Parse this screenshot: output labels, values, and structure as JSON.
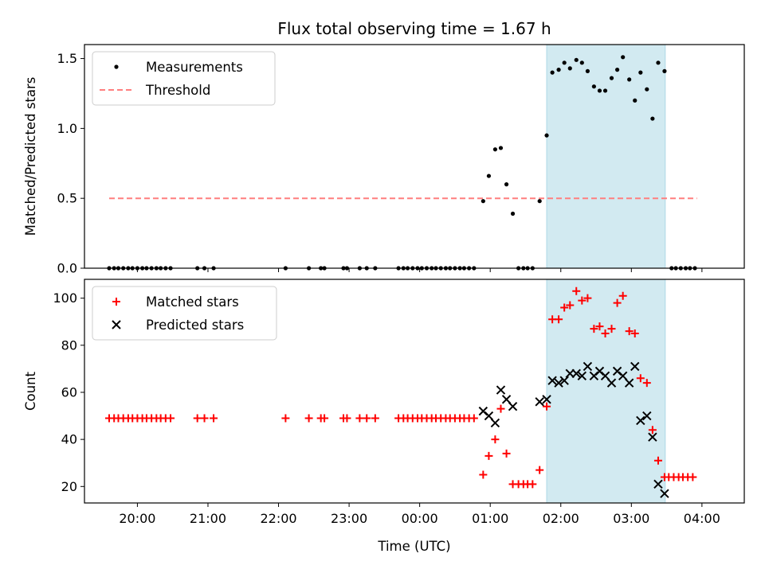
{
  "title": "Flux total observing time = 1.67 h",
  "colors": {
    "measurement": "#000000",
    "threshold": "#ff7f7f",
    "matched": "#ff0000",
    "predicted": "#000000",
    "span_fill": "#add8e6"
  },
  "chart_data": [
    {
      "type": "scatter",
      "ylabel": "Matched/Predicted stars",
      "ylim": [
        0,
        1.6
      ],
      "yticks": [
        0.0,
        0.5,
        1.0,
        1.5
      ],
      "ytick_labels": [
        "0.0",
        "0.5",
        "1.0",
        "1.5"
      ],
      "x_range_hours": [
        19.25,
        28.6
      ],
      "xticks_hours": [
        20,
        21,
        22,
        23,
        24,
        25,
        26,
        27,
        28
      ],
      "shaded_span_hours": [
        25.8,
        27.48
      ],
      "threshold": {
        "value": 0.5,
        "x_range_hours": [
          19.6,
          27.93
        ]
      },
      "legend": {
        "position": "top-left",
        "entries": [
          "Measurements",
          "Threshold"
        ]
      },
      "series": [
        {
          "name": "Measurements",
          "marker": "dot",
          "points": [
            [
              19.6,
              0
            ],
            [
              19.67,
              0
            ],
            [
              19.73,
              0
            ],
            [
              19.8,
              0
            ],
            [
              19.87,
              0
            ],
            [
              19.93,
              0
            ],
            [
              20.0,
              0
            ],
            [
              20.07,
              0
            ],
            [
              20.13,
              0
            ],
            [
              20.2,
              0
            ],
            [
              20.27,
              0
            ],
            [
              20.33,
              0
            ],
            [
              20.4,
              0
            ],
            [
              20.47,
              0
            ],
            [
              20.85,
              0
            ],
            [
              20.95,
              0
            ],
            [
              21.08,
              0
            ],
            [
              22.1,
              0
            ],
            [
              22.43,
              0
            ],
            [
              22.6,
              0
            ],
            [
              22.65,
              0
            ],
            [
              22.92,
              0
            ],
            [
              22.97,
              0
            ],
            [
              23.15,
              0
            ],
            [
              23.25,
              0
            ],
            [
              23.37,
              0
            ],
            [
              23.7,
              0
            ],
            [
              23.77,
              0
            ],
            [
              23.83,
              0
            ],
            [
              23.9,
              0
            ],
            [
              23.97,
              0
            ],
            [
              24.03,
              0
            ],
            [
              24.1,
              0
            ],
            [
              24.17,
              0
            ],
            [
              24.23,
              0
            ],
            [
              24.3,
              0
            ],
            [
              24.37,
              0
            ],
            [
              24.43,
              0
            ],
            [
              24.5,
              0
            ],
            [
              24.57,
              0
            ],
            [
              24.63,
              0
            ],
            [
              24.7,
              0
            ],
            [
              24.77,
              0
            ],
            [
              24.9,
              0.48
            ],
            [
              24.98,
              0.66
            ],
            [
              25.07,
              0.85
            ],
            [
              25.15,
              0.86
            ],
            [
              25.23,
              0.6
            ],
            [
              25.32,
              0.39
            ],
            [
              25.4,
              0
            ],
            [
              25.47,
              0
            ],
            [
              25.53,
              0
            ],
            [
              25.6,
              0
            ],
            [
              25.7,
              0.48
            ],
            [
              25.8,
              0.95
            ],
            [
              25.88,
              1.4
            ],
            [
              25.97,
              1.42
            ],
            [
              26.05,
              1.47
            ],
            [
              26.13,
              1.43
            ],
            [
              26.22,
              1.49
            ],
            [
              26.3,
              1.47
            ],
            [
              26.38,
              1.41
            ],
            [
              26.47,
              1.3
            ],
            [
              26.55,
              1.27
            ],
            [
              26.63,
              1.27
            ],
            [
              26.72,
              1.36
            ],
            [
              26.8,
              1.42
            ],
            [
              26.88,
              1.51
            ],
            [
              26.97,
              1.35
            ],
            [
              27.05,
              1.2
            ],
            [
              27.13,
              1.4
            ],
            [
              27.22,
              1.28
            ],
            [
              27.3,
              1.07
            ],
            [
              27.38,
              1.47
            ],
            [
              27.47,
              1.41
            ],
            [
              27.57,
              0
            ],
            [
              27.63,
              0
            ],
            [
              27.7,
              0
            ],
            [
              27.77,
              0
            ],
            [
              27.83,
              0
            ],
            [
              27.9,
              0
            ]
          ]
        }
      ]
    },
    {
      "type": "scatter",
      "ylabel": "Count",
      "xlabel": "Time (UTC)",
      "ylim": [
        13,
        108
      ],
      "yticks": [
        20,
        40,
        60,
        80,
        100
      ],
      "ytick_labels": [
        "20",
        "40",
        "60",
        "80",
        "100"
      ],
      "x_range_hours": [
        19.25,
        28.6
      ],
      "xticks_hours": [
        20,
        21,
        22,
        23,
        24,
        25,
        26,
        27,
        28
      ],
      "xtick_labels": [
        "20:00",
        "21:00",
        "22:00",
        "23:00",
        "00:00",
        "01:00",
        "02:00",
        "03:00",
        "04:00"
      ],
      "shaded_span_hours": [
        25.8,
        27.48
      ],
      "legend": {
        "position": "top-left",
        "entries": [
          "Matched stars",
          "Predicted stars"
        ]
      },
      "series": [
        {
          "name": "Matched stars",
          "marker": "plus",
          "points": [
            [
              19.6,
              49
            ],
            [
              19.67,
              49
            ],
            [
              19.73,
              49
            ],
            [
              19.8,
              49
            ],
            [
              19.87,
              49
            ],
            [
              19.93,
              49
            ],
            [
              20.0,
              49
            ],
            [
              20.07,
              49
            ],
            [
              20.13,
              49
            ],
            [
              20.2,
              49
            ],
            [
              20.27,
              49
            ],
            [
              20.33,
              49
            ],
            [
              20.4,
              49
            ],
            [
              20.47,
              49
            ],
            [
              20.85,
              49
            ],
            [
              20.95,
              49
            ],
            [
              21.08,
              49
            ],
            [
              22.1,
              49
            ],
            [
              22.43,
              49
            ],
            [
              22.6,
              49
            ],
            [
              22.65,
              49
            ],
            [
              22.92,
              49
            ],
            [
              22.97,
              49
            ],
            [
              23.15,
              49
            ],
            [
              23.25,
              49
            ],
            [
              23.37,
              49
            ],
            [
              23.7,
              49
            ],
            [
              23.77,
              49
            ],
            [
              23.83,
              49
            ],
            [
              23.9,
              49
            ],
            [
              23.97,
              49
            ],
            [
              24.03,
              49
            ],
            [
              24.1,
              49
            ],
            [
              24.17,
              49
            ],
            [
              24.23,
              49
            ],
            [
              24.3,
              49
            ],
            [
              24.37,
              49
            ],
            [
              24.43,
              49
            ],
            [
              24.5,
              49
            ],
            [
              24.57,
              49
            ],
            [
              24.63,
              49
            ],
            [
              24.7,
              49
            ],
            [
              24.77,
              49
            ],
            [
              24.9,
              25
            ],
            [
              24.98,
              33
            ],
            [
              25.07,
              40
            ],
            [
              25.15,
              53
            ],
            [
              25.23,
              34
            ],
            [
              25.32,
              21
            ],
            [
              25.4,
              21
            ],
            [
              25.47,
              21
            ],
            [
              25.53,
              21
            ],
            [
              25.6,
              21
            ],
            [
              25.7,
              27
            ],
            [
              25.8,
              54
            ],
            [
              25.88,
              91
            ],
            [
              25.97,
              91
            ],
            [
              26.05,
              96
            ],
            [
              26.13,
              97
            ],
            [
              26.22,
              103
            ],
            [
              26.3,
              99
            ],
            [
              26.38,
              100
            ],
            [
              26.47,
              87
            ],
            [
              26.55,
              88
            ],
            [
              26.63,
              85
            ],
            [
              26.72,
              87
            ],
            [
              26.8,
              98
            ],
            [
              26.88,
              101
            ],
            [
              26.97,
              86
            ],
            [
              27.05,
              85
            ],
            [
              27.13,
              66
            ],
            [
              27.22,
              64
            ],
            [
              27.3,
              44
            ],
            [
              27.38,
              31
            ],
            [
              27.47,
              24
            ],
            [
              27.53,
              24
            ],
            [
              27.6,
              24
            ],
            [
              27.67,
              24
            ],
            [
              27.73,
              24
            ],
            [
              27.8,
              24
            ],
            [
              27.87,
              24
            ]
          ]
        },
        {
          "name": "Predicted stars",
          "marker": "x",
          "points": [
            [
              24.9,
              52
            ],
            [
              24.98,
              50
            ],
            [
              25.07,
              47
            ],
            [
              25.15,
              61
            ],
            [
              25.23,
              57
            ],
            [
              25.32,
              54
            ],
            [
              25.7,
              56
            ],
            [
              25.8,
              57
            ],
            [
              25.88,
              65
            ],
            [
              25.97,
              64
            ],
            [
              26.05,
              65
            ],
            [
              26.13,
              68
            ],
            [
              26.22,
              68
            ],
            [
              26.3,
              67
            ],
            [
              26.38,
              71
            ],
            [
              26.47,
              67
            ],
            [
              26.55,
              69
            ],
            [
              26.63,
              67
            ],
            [
              26.72,
              64
            ],
            [
              26.8,
              69
            ],
            [
              26.88,
              67
            ],
            [
              26.97,
              64
            ],
            [
              27.05,
              71
            ],
            [
              27.13,
              48
            ],
            [
              27.22,
              50
            ],
            [
              27.3,
              41
            ],
            [
              27.38,
              21
            ],
            [
              27.47,
              17
            ]
          ]
        }
      ]
    }
  ]
}
